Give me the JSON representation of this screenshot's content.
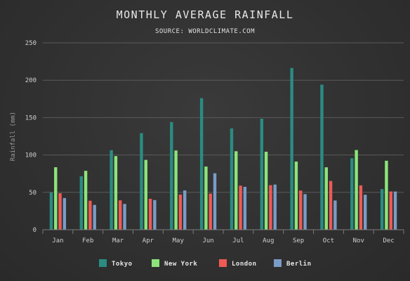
{
  "chart_data": {
    "type": "bar",
    "title": "MONTHLY AVERAGE RAINFALL",
    "subtitle": "SOURCE: WORLDCLIMATE.COM",
    "ylabel": "Rainfall (mm)",
    "xlabel": "",
    "ylim": [
      0,
      250
    ],
    "yticks": [
      0,
      50,
      100,
      150,
      200,
      250
    ],
    "grid": true,
    "legend_position": "bottom",
    "categories": [
      "Jan",
      "Feb",
      "Mar",
      "Apr",
      "May",
      "Jun",
      "Jul",
      "Aug",
      "Sep",
      "Oct",
      "Nov",
      "Dec"
    ],
    "series": [
      {
        "name": "Tokyo",
        "color": "#2a8c82",
        "values": [
          49.9,
          71.5,
          106.4,
          129.2,
          144.0,
          176.0,
          135.6,
          148.5,
          216.4,
          194.1,
          95.6,
          54.4
        ]
      },
      {
        "name": "New York",
        "color": "#8ce57a",
        "values": [
          83.6,
          78.8,
          98.5,
          93.4,
          106.0,
          84.5,
          105.0,
          104.3,
          91.2,
          83.5,
          106.6,
          92.3
        ]
      },
      {
        "name": "London",
        "color": "#f05a54",
        "values": [
          48.9,
          38.8,
          39.3,
          41.4,
          47.0,
          48.3,
          59.0,
          59.6,
          52.4,
          65.2,
          59.3,
          51.2
        ]
      },
      {
        "name": "Berlin",
        "color": "#7a9cc6",
        "values": [
          42.4,
          33.2,
          34.5,
          39.7,
          52.6,
          75.5,
          57.4,
          60.4,
          47.6,
          39.1,
          46.8,
          51.1
        ]
      }
    ]
  }
}
